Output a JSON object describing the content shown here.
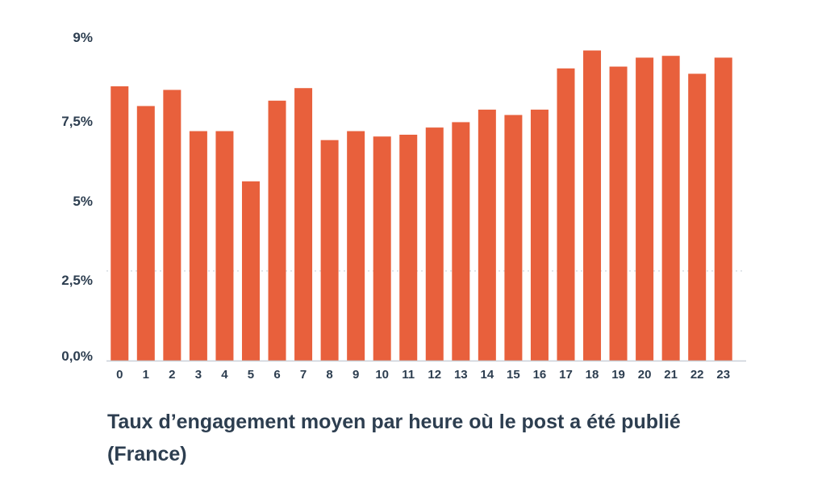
{
  "colors": {
    "bar": "#e8603c",
    "text": "#2d3e50",
    "grid": "#d7dde3",
    "axis": "#c9d0d7"
  },
  "caption": "Taux d’engagement moyen par heure où le post a été publié (France)",
  "chart_data": {
    "type": "bar",
    "title": "",
    "xlabel": "",
    "ylabel": "",
    "categories": [
      "0",
      "1",
      "2",
      "3",
      "4",
      "5",
      "6",
      "7",
      "8",
      "9",
      "10",
      "11",
      "12",
      "13",
      "14",
      "15",
      "16",
      "17",
      "18",
      "19",
      "20",
      "21",
      "22",
      "23"
    ],
    "values": [
      7.65,
      7.1,
      7.55,
      6.4,
      6.4,
      5.0,
      7.25,
      7.6,
      6.15,
      6.4,
      6.25,
      6.3,
      6.5,
      6.65,
      7.0,
      6.85,
      7.0,
      8.15,
      8.65,
      8.2,
      8.45,
      8.5,
      8.0,
      8.45
    ],
    "ylim": [
      0,
      9
    ],
    "yticks": [
      {
        "value": 0,
        "label": "0,0%"
      },
      {
        "value": 2.5,
        "label": "2,5%"
      },
      {
        "value": 5,
        "label": "5%"
      },
      {
        "value": 7.5,
        "label": "7,5%"
      },
      {
        "value": 9,
        "label": "9%"
      }
    ],
    "grid": "dotted horizontal line at 2,5%",
    "legend": "none"
  }
}
